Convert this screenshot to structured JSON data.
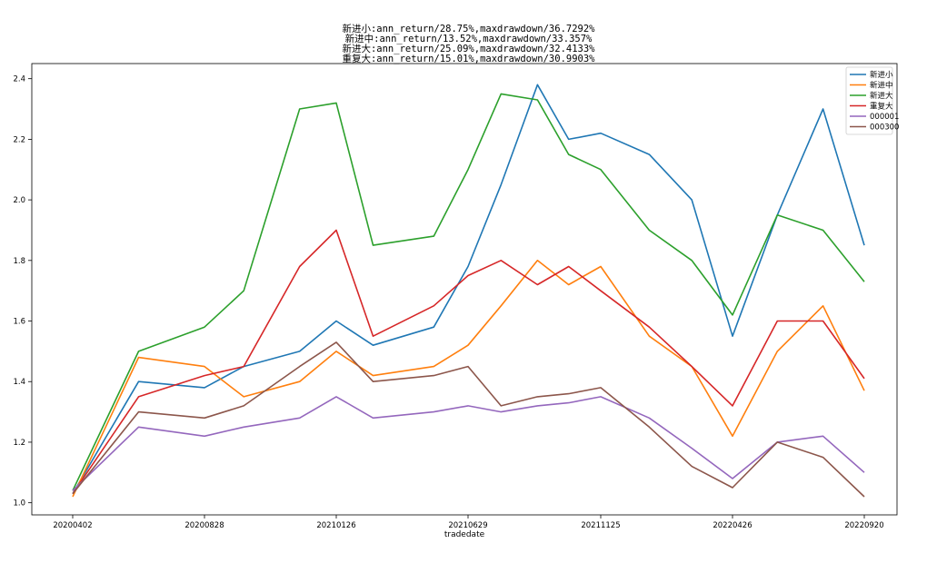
{
  "chart_data": {
    "type": "line",
    "title_lines": [
      "新进小:ann_return/28.75%,maxdrawdown/36.7292%",
      "新进中:ann_return/13.52%,maxdrawdown/33.357%",
      "新进大:ann_return/25.09%,maxdrawdown/32.4133%",
      "重复大:ann_return/15.01%,maxdrawdown/30.9903%"
    ],
    "xlabel": "tradedate",
    "ylabel": "",
    "x_ticks": [
      "20200402",
      "20200828",
      "20210126",
      "20210629",
      "20211125",
      "20220426",
      "20220920"
    ],
    "y_ticks": [
      "1.0",
      "1.2",
      "1.4",
      "1.6",
      "1.8",
      "2.0",
      "2.2",
      "2.4"
    ],
    "ylim": [
      0.96,
      2.45
    ],
    "grid": false,
    "legend_position": "top-right",
    "series": [
      {
        "name": "新进小",
        "color": "#1f77b4",
        "x": [
          "20200402",
          "20200615",
          "20200828",
          "20201012",
          "20201215",
          "20210126",
          "20210310",
          "20210520",
          "20210629",
          "20210805",
          "20210915",
          "20211020",
          "20211125",
          "20220120",
          "20220310",
          "20220426",
          "20220615",
          "20220805",
          "20220920"
        ],
        "values": [
          1.03,
          1.4,
          1.38,
          1.45,
          1.5,
          1.6,
          1.52,
          1.58,
          1.78,
          2.05,
          2.38,
          2.2,
          2.22,
          2.15,
          2.0,
          1.55,
          1.95,
          2.3,
          1.85
        ]
      },
      {
        "name": "新进中",
        "color": "#ff7f0e",
        "x": [
          "20200402",
          "20200615",
          "20200828",
          "20201012",
          "20201215",
          "20210126",
          "20210310",
          "20210520",
          "20210629",
          "20210805",
          "20210915",
          "20211020",
          "20211125",
          "20220120",
          "20220310",
          "20220426",
          "20220615",
          "20220805",
          "20220920"
        ],
        "values": [
          1.02,
          1.48,
          1.45,
          1.35,
          1.4,
          1.5,
          1.42,
          1.45,
          1.52,
          1.65,
          1.8,
          1.72,
          1.78,
          1.55,
          1.45,
          1.22,
          1.5,
          1.65,
          1.37
        ]
      },
      {
        "name": "新进大",
        "color": "#2ca02c",
        "x": [
          "20200402",
          "20200615",
          "20200828",
          "20201012",
          "20201215",
          "20210126",
          "20210310",
          "20210520",
          "20210629",
          "20210805",
          "20210915",
          "20211020",
          "20211125",
          "20220120",
          "20220310",
          "20220426",
          "20220615",
          "20220805",
          "20220920"
        ],
        "values": [
          1.04,
          1.5,
          1.58,
          1.7,
          2.3,
          2.32,
          1.85,
          1.88,
          2.1,
          2.35,
          2.33,
          2.15,
          2.1,
          1.9,
          1.8,
          1.62,
          1.95,
          1.9,
          1.73
        ]
      },
      {
        "name": "重复大",
        "color": "#d62728",
        "x": [
          "20200402",
          "20200615",
          "20200828",
          "20201012",
          "20201215",
          "20210126",
          "20210310",
          "20210520",
          "20210629",
          "20210805",
          "20210915",
          "20211020",
          "20211125",
          "20220120",
          "20220310",
          "20220426",
          "20220615",
          "20220805",
          "20220920"
        ],
        "values": [
          1.03,
          1.35,
          1.42,
          1.45,
          1.78,
          1.9,
          1.55,
          1.65,
          1.75,
          1.8,
          1.72,
          1.78,
          1.7,
          1.58,
          1.45,
          1.32,
          1.6,
          1.6,
          1.41
        ]
      },
      {
        "name": "000001",
        "color": "#9467bd",
        "x": [
          "20200402",
          "20200615",
          "20200828",
          "20201012",
          "20201215",
          "20210126",
          "20210310",
          "20210520",
          "20210629",
          "20210805",
          "20210915",
          "20211020",
          "20211125",
          "20220120",
          "20220310",
          "20220426",
          "20220615",
          "20220805",
          "20220920"
        ],
        "values": [
          1.04,
          1.25,
          1.22,
          1.25,
          1.28,
          1.35,
          1.28,
          1.3,
          1.32,
          1.3,
          1.32,
          1.33,
          1.35,
          1.28,
          1.18,
          1.08,
          1.2,
          1.22,
          1.1
        ]
      },
      {
        "name": "000300",
        "color": "#8c564b",
        "x": [
          "20200402",
          "20200615",
          "20200828",
          "20201012",
          "20201215",
          "20210126",
          "20210310",
          "20210520",
          "20210629",
          "20210805",
          "20210915",
          "20211020",
          "20211125",
          "20220120",
          "20220310",
          "20220426",
          "20220615",
          "20220805",
          "20220920"
        ],
        "values": [
          1.03,
          1.3,
          1.28,
          1.32,
          1.45,
          1.53,
          1.4,
          1.42,
          1.45,
          1.32,
          1.35,
          1.36,
          1.38,
          1.25,
          1.12,
          1.05,
          1.2,
          1.15,
          1.02
        ]
      }
    ]
  }
}
